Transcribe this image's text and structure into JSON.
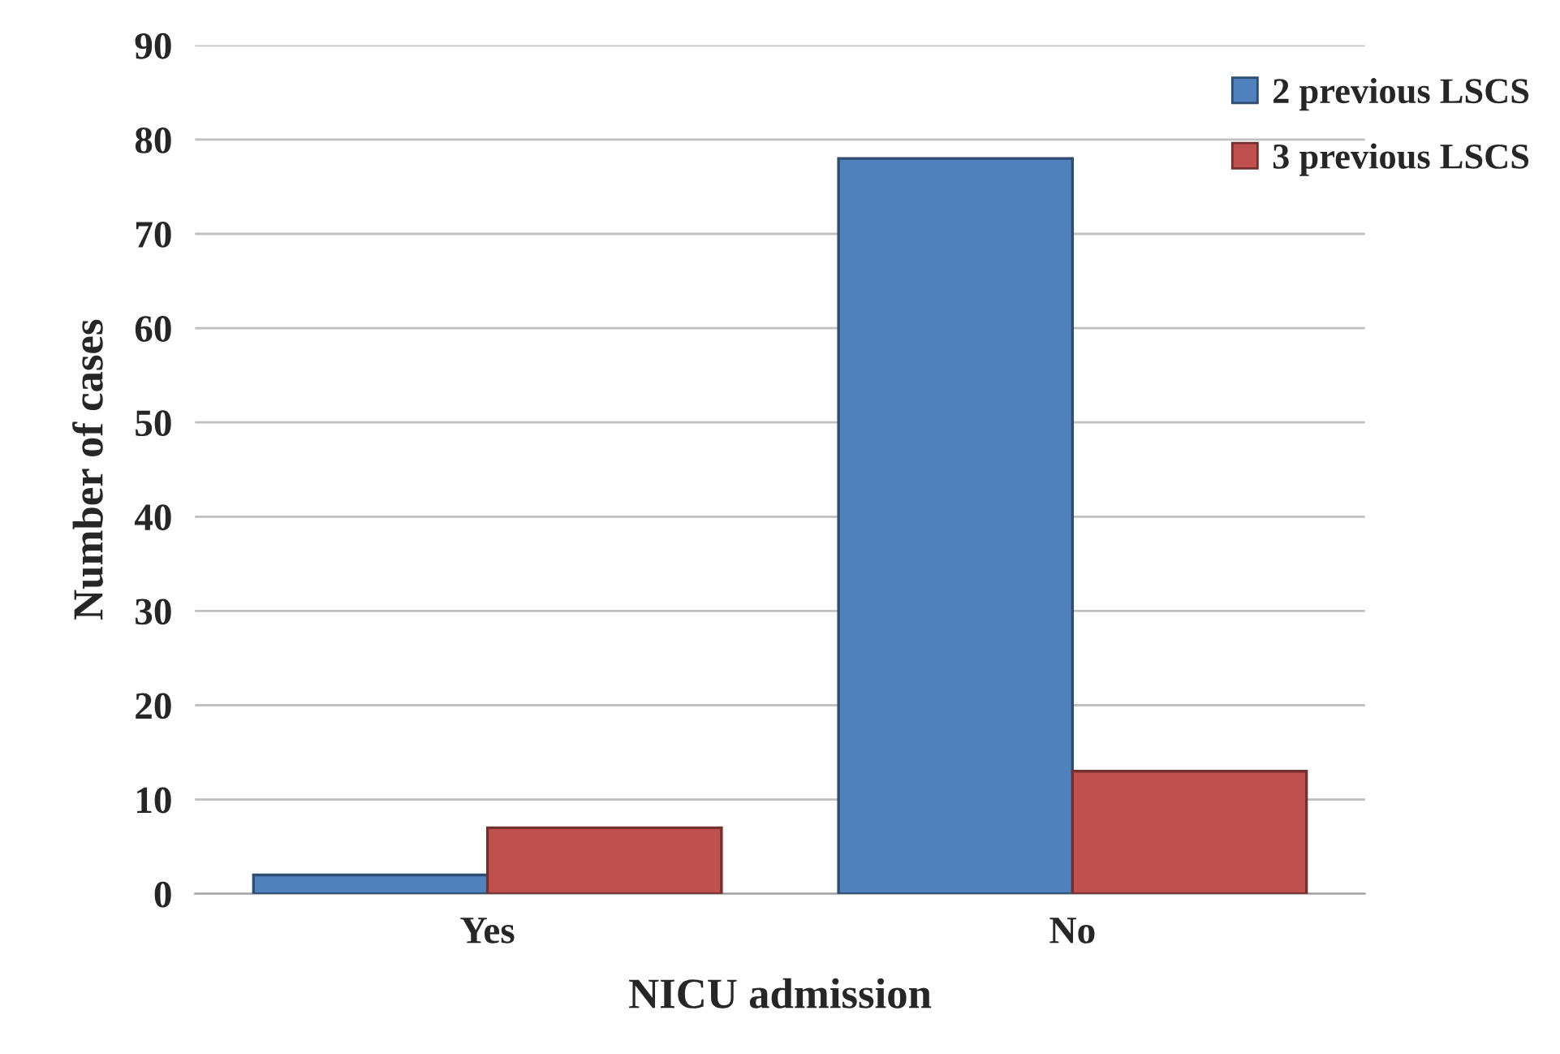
{
  "chart_data": {
    "type": "bar",
    "xlabel": "NICU admission",
    "ylabel": "Number of cases",
    "categories": [
      "Yes",
      "No"
    ],
    "series": [
      {
        "name": "2 previous LSCS",
        "color": "#4f81bd",
        "values": [
          2,
          78
        ]
      },
      {
        "name": "3 previous LSCS",
        "color": "#c0504d",
        "values": [
          7,
          13
        ]
      }
    ],
    "ylim": [
      0,
      90
    ],
    "yticks": [
      0,
      10,
      20,
      30,
      40,
      50,
      60,
      70,
      80,
      90
    ],
    "grid": "y",
    "legend": "top right"
  }
}
